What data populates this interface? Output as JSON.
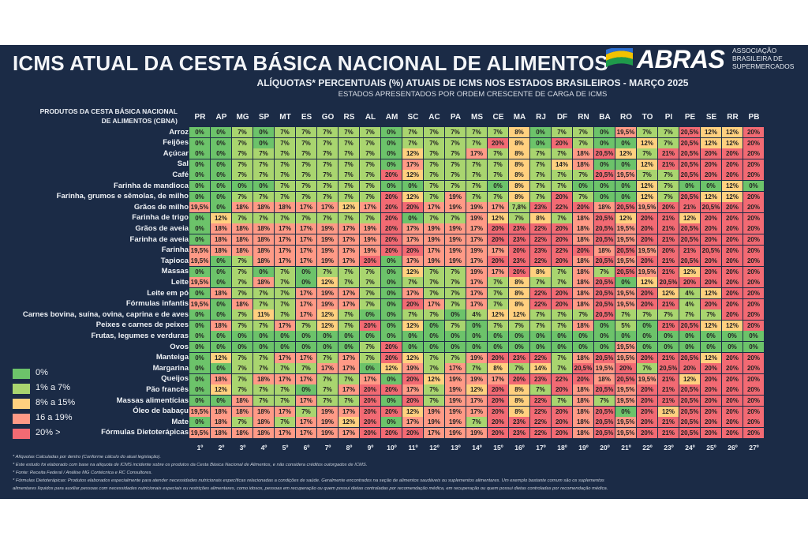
{
  "title": "ICMS ATUAL DA CESTA BÁSICA NACIONAL DE ALIMENTOS",
  "subtitle": "ALÍQUOTAS* PERCENTUAIS (%) ATUAIS DE ICMS NOS ESTADOS BRASILEIROS - MARÇO 2025",
  "order_note": "ESTADOS APRESENTADOS POR ORDEM CRESCENTE DE CARGA DE ICMS",
  "logo": {
    "name": "ABRAS",
    "sub_line1": "ASSOCIAÇÃO",
    "sub_line2": "BRASILEIRA DE",
    "sub_line3": "SUPERMERCADOS"
  },
  "corner_header": {
    "line1": "PRODUTOS DA CESTA BÁSICA NACIONAL",
    "line2": "DE ALIMENTOS (CBNA)"
  },
  "colors": {
    "board": "#1b2b46",
    "c0": "#6cc36a",
    "c1": "#a9d56f",
    "c8": "#ffd07f",
    "c16": "#ff9a86",
    "c20": "#f26a73"
  },
  "legend": [
    {
      "label": "0%",
      "color": "#6cc36a"
    },
    {
      "label": "1% a 7%",
      "color": "#a9d56f"
    },
    {
      "label": "8% a 15%",
      "color": "#ffd07f"
    },
    {
      "label": "16 a 19%",
      "color": "#ff9a86"
    },
    {
      "label": "20% >",
      "color": "#f26a73"
    }
  ],
  "footnotes": [
    "* Alíquotas Calculadas por dentro (Conforme cálculo do atual legislação).",
    "* Este estudo foi elaborado com base na alíquota de ICMS incidente sobre os produtos da Cesta Básica Nacional de Alimentos, e não considera créditos outorgados de ICMS.",
    "* Fonte: Receita Federal / Análise MG Contécnica e RC Consultores.",
    "* Fórmulas Dietoterápicas: Produtos elaborados especialmente para atender necessidades nutricionais específicas relacionadas a condições de saúde. Geralmente encontrados na seção de alimentos saudáveis ou suplementos alimentares. Um exemplo bastante comum são os suplementos",
    "alimentares líquidos para auxiliar pessoas com necessidades nutricionais especiais ou restrições alimentares, como idosos, pessoas em recuperação ou quem possui dietas controladas por recomendação médica, em recuperação ou quem possui dietas controladas por recomendação médica."
  ],
  "chart_data": {
    "type": "heatmap",
    "title": "ICMS ATUAL DA CESTA BÁSICA NACIONAL DE ALIMENTOS",
    "states": [
      "PR",
      "AP",
      "MG",
      "SP",
      "MT",
      "ES",
      "GO",
      "RS",
      "AL",
      "AM",
      "SC",
      "AC",
      "PA",
      "MS",
      "CE",
      "MA",
      "RJ",
      "DF",
      "RN",
      "BA",
      "RO",
      "TO",
      "PI",
      "PE",
      "SE",
      "RR",
      "PB"
    ],
    "ranks": [
      "1º",
      "2º",
      "3º",
      "4º",
      "5º",
      "6º",
      "7º",
      "8º",
      "9º",
      "10º",
      "11º",
      "12º",
      "13º",
      "14º",
      "15º",
      "16º",
      "17º",
      "18º",
      "19º",
      "20º",
      "21º",
      "22º",
      "23º",
      "24º",
      "25º",
      "26º",
      "27º"
    ],
    "products": [
      "Arroz",
      "Feijões",
      "Açúcar",
      "Sal",
      "Café",
      "Farinha de mandioca",
      "Farinha, grumos e sêmolas, de milho",
      "Grãos de milho",
      "Farinha de trigo",
      "Grãos de aveia",
      "Farinha de aveia",
      "Farinha",
      "Tapioca",
      "Massas",
      "Leite",
      "Leite em pó",
      "Fórmulas infantis",
      "Carnes bovina, suína, ovina, caprina e de aves",
      "Peixes e carnes de peixes",
      "Frutas, legumes e verduras",
      "Ovos",
      "Manteiga",
      "Margarina",
      "Queijos",
      "Pão francês",
      "Massas alimentícias",
      "Óleo de babaçu",
      "Mate",
      "Fórmulas Dietoterápicas"
    ],
    "values": [
      [
        "0%",
        "0%",
        "7%",
        "0%",
        "7%",
        "7%",
        "7%",
        "7%",
        "7%",
        "0%",
        "7%",
        "7%",
        "7%",
        "7%",
        "7%",
        "8%",
        "0%",
        "7%",
        "7%",
        "0%",
        "19,5%",
        "7%",
        "7%",
        "20,5%",
        "12%",
        "12%",
        "20%"
      ],
      [
        "0%",
        "0%",
        "7%",
        "0%",
        "7%",
        "7%",
        "7%",
        "7%",
        "7%",
        "0%",
        "7%",
        "7%",
        "7%",
        "7%",
        "20%",
        "8%",
        "0%",
        "20%",
        "7%",
        "0%",
        "0%",
        "12%",
        "7%",
        "20,5%",
        "12%",
        "12%",
        "20%"
      ],
      [
        "0%",
        "0%",
        "7%",
        "7%",
        "7%",
        "7%",
        "7%",
        "7%",
        "7%",
        "0%",
        "12%",
        "7%",
        "7%",
        "17%",
        "7%",
        "8%",
        "7%",
        "7%",
        "18%",
        "20,5%",
        "12%",
        "7%",
        "21%",
        "20,5%",
        "20%",
        "20%",
        "20%"
      ],
      [
        "0%",
        "0%",
        "7%",
        "7%",
        "7%",
        "7%",
        "7%",
        "7%",
        "7%",
        "0%",
        "17%",
        "7%",
        "7%",
        "7%",
        "7%",
        "8%",
        "7%",
        "14%",
        "18%",
        "0%",
        "0%",
        "12%",
        "21%",
        "20,5%",
        "20%",
        "20%",
        "20%"
      ],
      [
        "0%",
        "0%",
        "7%",
        "7%",
        "7%",
        "7%",
        "7%",
        "7%",
        "7%",
        "20%",
        "12%",
        "7%",
        "7%",
        "7%",
        "7%",
        "8%",
        "7%",
        "7%",
        "7%",
        "20,5%",
        "19,5%",
        "7%",
        "7%",
        "20,5%",
        "20%",
        "20%",
        "20%"
      ],
      [
        "0%",
        "0%",
        "0%",
        "0%",
        "7%",
        "7%",
        "7%",
        "7%",
        "7%",
        "0%",
        "0%",
        "7%",
        "7%",
        "7%",
        "0%",
        "8%",
        "7%",
        "7%",
        "0%",
        "0%",
        "0%",
        "12%",
        "7%",
        "0%",
        "0%",
        "12%",
        "0%"
      ],
      [
        "0%",
        "0%",
        "7%",
        "7%",
        "7%",
        "7%",
        "7%",
        "7%",
        "7%",
        "20%",
        "12%",
        "7%",
        "19%",
        "7%",
        "7%",
        "8%",
        "7%",
        "20%",
        "7%",
        "0%",
        "0%",
        "12%",
        "7%",
        "20,5%",
        "12%",
        "12%",
        "20%"
      ],
      [
        "19,5%",
        "0%",
        "18%",
        "18%",
        "18%",
        "17%",
        "17%",
        "12%",
        "17%",
        "20%",
        "20%",
        "17%",
        "19%",
        "19%",
        "17%",
        "7,8%",
        "23%",
        "22%",
        "20%",
        "18%",
        "20,5%",
        "19,5%",
        "20%",
        "21%",
        "20,5%",
        "20%",
        "20%"
      ],
      [
        "0%",
        "12%",
        "7%",
        "7%",
        "7%",
        "7%",
        "7%",
        "7%",
        "7%",
        "20%",
        "0%",
        "7%",
        "7%",
        "19%",
        "12%",
        "7%",
        "8%",
        "7%",
        "18%",
        "20,5%",
        "12%",
        "20%",
        "21%",
        "12%",
        "20%",
        "20%",
        "20%"
      ],
      [
        "0%",
        "18%",
        "18%",
        "18%",
        "17%",
        "17%",
        "19%",
        "17%",
        "19%",
        "20%",
        "17%",
        "19%",
        "19%",
        "17%",
        "20%",
        "23%",
        "22%",
        "20%",
        "18%",
        "20,5%",
        "19,5%",
        "20%",
        "21%",
        "20,5%",
        "20%",
        "20%",
        "20%"
      ],
      [
        "0%",
        "18%",
        "18%",
        "18%",
        "17%",
        "17%",
        "19%",
        "17%",
        "19%",
        "20%",
        "17%",
        "19%",
        "19%",
        "17%",
        "20%",
        "23%",
        "22%",
        "20%",
        "18%",
        "20,5%",
        "19,5%",
        "20%",
        "21%",
        "20,5%",
        "20%",
        "20%",
        "20%"
      ],
      [
        "19,5%",
        "18%",
        "18%",
        "18%",
        "17%",
        "17%",
        "19%",
        "17%",
        "19%",
        "20%",
        "20%",
        "17%",
        "19%",
        "19%",
        "17%",
        "20%",
        "23%",
        "22%",
        "20%",
        "18%",
        "20,5%",
        "19,5%",
        "20%",
        "21%",
        "20,5%",
        "20%",
        "20%"
      ],
      [
        "19,5%",
        "0%",
        "7%",
        "18%",
        "17%",
        "17%",
        "19%",
        "17%",
        "20%",
        "0%",
        "17%",
        "19%",
        "19%",
        "17%",
        "20%",
        "23%",
        "22%",
        "20%",
        "18%",
        "20,5%",
        "19,5%",
        "20%",
        "21%",
        "20,5%",
        "20%",
        "20%",
        "20%"
      ],
      [
        "0%",
        "0%",
        "7%",
        "0%",
        "7%",
        "0%",
        "7%",
        "7%",
        "7%",
        "0%",
        "12%",
        "7%",
        "7%",
        "19%",
        "17%",
        "20%",
        "8%",
        "7%",
        "18%",
        "7%",
        "20,5%",
        "19,5%",
        "21%",
        "12%",
        "20%",
        "20%",
        "20%"
      ],
      [
        "19,5%",
        "0%",
        "7%",
        "18%",
        "7%",
        "0%",
        "12%",
        "7%",
        "7%",
        "0%",
        "7%",
        "7%",
        "7%",
        "17%",
        "7%",
        "8%",
        "7%",
        "7%",
        "18%",
        "20,5%",
        "0%",
        "12%",
        "20,5%",
        "20%",
        "20%",
        "20%",
        "20%"
      ],
      [
        "0%",
        "18%",
        "7%",
        "7%",
        "7%",
        "17%",
        "19%",
        "17%",
        "7%",
        "0%",
        "17%",
        "7%",
        "7%",
        "17%",
        "7%",
        "8%",
        "22%",
        "20%",
        "18%",
        "20,5%",
        "19,5%",
        "20%",
        "12%",
        "4%",
        "12%",
        "20%",
        "20%"
      ],
      [
        "19,5%",
        "0%",
        "18%",
        "7%",
        "7%",
        "17%",
        "19%",
        "17%",
        "7%",
        "0%",
        "20%",
        "17%",
        "7%",
        "17%",
        "7%",
        "8%",
        "22%",
        "20%",
        "18%",
        "20,5%",
        "19,5%",
        "20%",
        "21%",
        "4%",
        "20%",
        "20%",
        "20%"
      ],
      [
        "0%",
        "0%",
        "7%",
        "11%",
        "7%",
        "17%",
        "12%",
        "7%",
        "0%",
        "0%",
        "7%",
        "7%",
        "0%",
        "4%",
        "12%",
        "12%",
        "7%",
        "7%",
        "7%",
        "20,5%",
        "7%",
        "7%",
        "7%",
        "7%",
        "7%",
        "20%",
        "20%"
      ],
      [
        "0%",
        "18%",
        "7%",
        "7%",
        "17%",
        "7%",
        "12%",
        "7%",
        "20%",
        "0%",
        "12%",
        "0%",
        "7%",
        "0%",
        "7%",
        "7%",
        "7%",
        "7%",
        "18%",
        "0%",
        "5%",
        "0%",
        "21%",
        "20,5%",
        "12%",
        "12%",
        "20%"
      ],
      [
        "0%",
        "0%",
        "0%",
        "0%",
        "0%",
        "0%",
        "0%",
        "0%",
        "0%",
        "0%",
        "0%",
        "0%",
        "0%",
        "0%",
        "0%",
        "0%",
        "0%",
        "0%",
        "0%",
        "0%",
        "0%",
        "0%",
        "0%",
        "0%",
        "0%",
        "0%",
        "0%"
      ],
      [
        "0%",
        "0%",
        "0%",
        "0%",
        "0%",
        "0%",
        "0%",
        "0%",
        "7%",
        "20%",
        "0%",
        "0%",
        "0%",
        "0%",
        "0%",
        "0%",
        "0%",
        "0%",
        "0%",
        "0%",
        "19,5%",
        "0%",
        "0%",
        "0%",
        "0%",
        "0%",
        "0%"
      ],
      [
        "0%",
        "12%",
        "7%",
        "7%",
        "17%",
        "17%",
        "7%",
        "17%",
        "7%",
        "20%",
        "12%",
        "7%",
        "7%",
        "19%",
        "20%",
        "23%",
        "22%",
        "7%",
        "18%",
        "20,5%",
        "19,5%",
        "20%",
        "21%",
        "20,5%",
        "12%",
        "20%",
        "20%"
      ],
      [
        "0%",
        "0%",
        "7%",
        "7%",
        "7%",
        "7%",
        "17%",
        "17%",
        "0%",
        "12%",
        "19%",
        "7%",
        "17%",
        "7%",
        "8%",
        "7%",
        "14%",
        "7%",
        "20,5%",
        "19,5%",
        "20%",
        "7%",
        "20,5%",
        "20%",
        "20%",
        "20%",
        "20%"
      ],
      [
        "0%",
        "18%",
        "7%",
        "18%",
        "17%",
        "17%",
        "7%",
        "7%",
        "17%",
        "0%",
        "20%",
        "12%",
        "19%",
        "19%",
        "17%",
        "20%",
        "23%",
        "22%",
        "20%",
        "18%",
        "20,5%",
        "19,5%",
        "21%",
        "12%",
        "20%",
        "20%",
        "20%"
      ],
      [
        "0%",
        "12%",
        "7%",
        "7%",
        "7%",
        "0%",
        "7%",
        "17%",
        "20%",
        "20%",
        "17%",
        "7%",
        "19%",
        "12%",
        "20%",
        "8%",
        "7%",
        "20%",
        "18%",
        "20,5%",
        "19,5%",
        "20%",
        "21%",
        "20,5%",
        "20%",
        "20%",
        "20%"
      ],
      [
        "0%",
        "0%",
        "18%",
        "7%",
        "7%",
        "17%",
        "7%",
        "7%",
        "20%",
        "0%",
        "20%",
        "7%",
        "19%",
        "17%",
        "20%",
        "8%",
        "22%",
        "7%",
        "18%",
        "7%",
        "19,5%",
        "20%",
        "21%",
        "20,5%",
        "20%",
        "20%",
        "20%"
      ],
      [
        "19,5%",
        "18%",
        "18%",
        "18%",
        "17%",
        "7%",
        "19%",
        "17%",
        "20%",
        "20%",
        "12%",
        "19%",
        "19%",
        "17%",
        "20%",
        "8%",
        "22%",
        "20%",
        "18%",
        "20,5%",
        "0%",
        "20%",
        "12%",
        "20,5%",
        "20%",
        "20%",
        "20%"
      ],
      [
        "0%",
        "18%",
        "7%",
        "18%",
        "7%",
        "17%",
        "19%",
        "12%",
        "20%",
        "0%",
        "17%",
        "19%",
        "19%",
        "7%",
        "20%",
        "23%",
        "22%",
        "20%",
        "18%",
        "20,5%",
        "19,5%",
        "20%",
        "21%",
        "20,5%",
        "20%",
        "20%",
        "20%"
      ],
      [
        "19,5%",
        "18%",
        "18%",
        "18%",
        "17%",
        "17%",
        "19%",
        "17%",
        "20%",
        "20%",
        "20%",
        "17%",
        "19%",
        "19%",
        "20%",
        "23%",
        "22%",
        "20%",
        "18%",
        "20,5%",
        "19,5%",
        "20%",
        "21%",
        "20,5%",
        "20%",
        "20%",
        "20%"
      ]
    ]
  }
}
